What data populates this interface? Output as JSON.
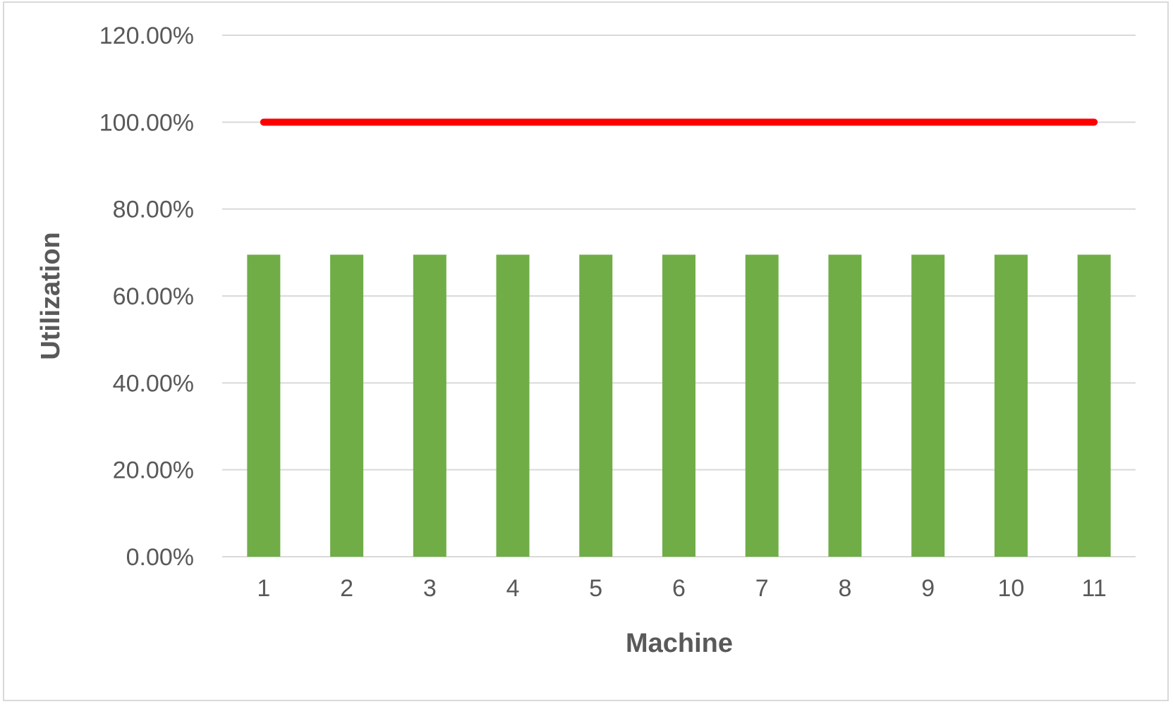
{
  "chart_data": {
    "type": "bar",
    "xlabel": "Machine",
    "ylabel": "Utilization",
    "categories": [
      "1",
      "2",
      "3",
      "4",
      "5",
      "6",
      "7",
      "8",
      "9",
      "10",
      "11"
    ],
    "series": [
      {
        "type": "bar",
        "color": "#70ad47",
        "values": [
          69.5,
          69.5,
          69.5,
          69.5,
          69.5,
          69.5,
          69.5,
          69.5,
          69.5,
          69.5,
          69.5
        ]
      },
      {
        "type": "line",
        "color": "#ff0000",
        "values": [
          100,
          100,
          100,
          100,
          100,
          100,
          100,
          100,
          100,
          100,
          100
        ]
      }
    ],
    "ylim": [
      0,
      120
    ],
    "yticks": [
      "0.00%",
      "20.00%",
      "40.00%",
      "60.00%",
      "80.00%",
      "100.00%",
      "120.00%"
    ],
    "ytick_values": [
      0,
      20,
      40,
      60,
      80,
      100,
      120
    ],
    "grid": true,
    "gridline_color": "#d9d9d9",
    "legend": "none"
  }
}
